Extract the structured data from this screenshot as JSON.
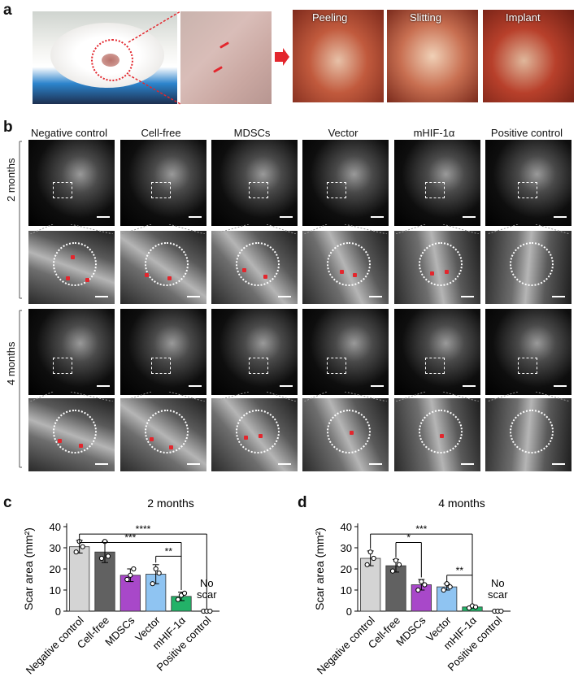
{
  "panels": {
    "a": "a",
    "b": "b",
    "c": "c",
    "d": "d"
  },
  "surgery": {
    "steps": [
      "Peeling",
      "Slitting",
      "Implant"
    ]
  },
  "mri": {
    "columns": [
      "Negative control",
      "Cell-free",
      "MDSCs",
      "Vector",
      "mHIF-1α",
      "Positive control"
    ],
    "rows": [
      "2 months",
      "4 months"
    ]
  },
  "chart_data": [
    {
      "type": "bar",
      "title": "2 months",
      "ylabel": "Scar area (mm²)",
      "ylim": [
        0,
        40
      ],
      "yticks": [
        0,
        10,
        20,
        30,
        40
      ],
      "categories": [
        "Negative control",
        "Cell-free",
        "MDSCs",
        "Vector",
        "mHIF-1α",
        "Positive control"
      ],
      "values": [
        30.5,
        28,
        17,
        17.5,
        7,
        0
      ],
      "errors": [
        3,
        5,
        3,
        4.5,
        2,
        0
      ],
      "points": [
        [
          28,
          33,
          30.5
        ],
        [
          25,
          33,
          26
        ],
        [
          15,
          17,
          20
        ],
        [
          13,
          20,
          18
        ],
        [
          5.5,
          7.5,
          8.5
        ],
        [
          0,
          0,
          0
        ]
      ],
      "colors": [
        "#d4d4d4",
        "#616161",
        "#a848c9",
        "#8fc4f2",
        "#23b268",
        "#ffffff"
      ],
      "annotation": "No scar",
      "significance": [
        {
          "from": 0,
          "to": 5,
          "label": "****"
        },
        {
          "from": 0,
          "to": 4,
          "label": "***"
        },
        {
          "from": 3,
          "to": 4,
          "label": "**"
        }
      ]
    },
    {
      "type": "bar",
      "title": "4 months",
      "ylabel": "Scar area (mm²)",
      "ylim": [
        0,
        40
      ],
      "yticks": [
        0,
        10,
        20,
        30,
        40
      ],
      "categories": [
        "Negative control",
        "Cell-free",
        "MDSCs",
        "Vector",
        "mHIF-1α",
        "Positive control"
      ],
      "values": [
        25,
        21.5,
        12.5,
        11.5,
        2,
        0
      ],
      "errors": [
        3.5,
        3,
        2.5,
        1.5,
        0.5,
        0
      ],
      "points": [
        [
          22,
          28,
          25
        ],
        [
          19,
          24,
          22
        ],
        [
          10,
          14,
          12.5
        ],
        [
          10,
          13,
          11.5
        ],
        [
          1.5,
          2.5,
          2
        ],
        [
          0,
          0,
          0
        ]
      ],
      "colors": [
        "#d4d4d4",
        "#616161",
        "#a848c9",
        "#8fc4f2",
        "#23b268",
        "#ffffff"
      ],
      "annotation": "No scar",
      "significance": [
        {
          "from": 0,
          "to": 4,
          "label": "***"
        },
        {
          "from": 1,
          "to": 2,
          "label": "*"
        },
        {
          "from": 3,
          "to": 4,
          "label": "**"
        }
      ]
    }
  ]
}
